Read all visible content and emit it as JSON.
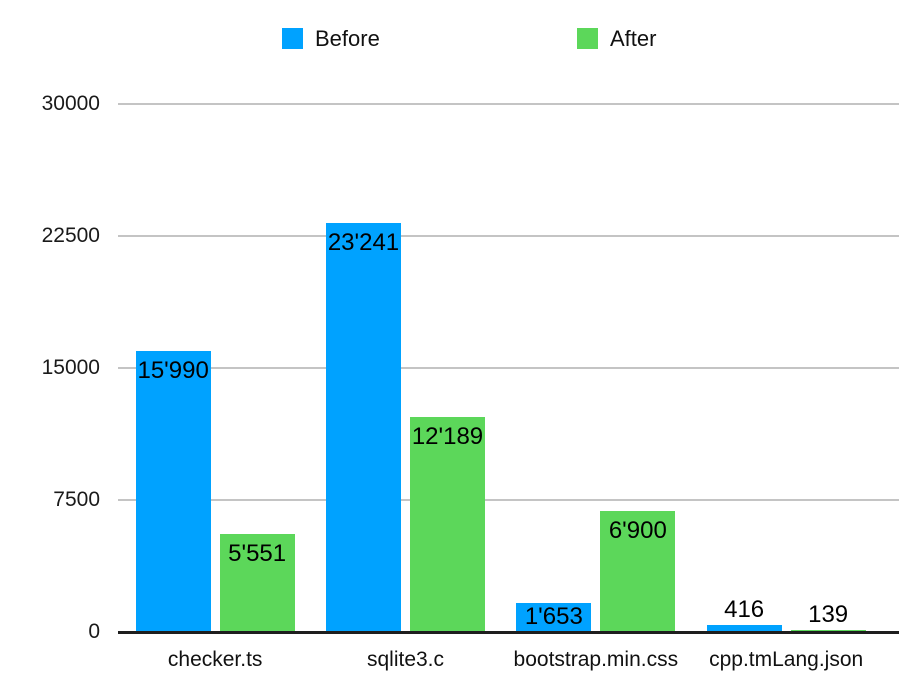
{
  "chart_data": {
    "type": "bar",
    "title": "",
    "xlabel": "",
    "ylabel": "",
    "categories": [
      "checker.ts",
      "sqlite3.c",
      "bootstrap.min.css",
      "cpp.tmLang.json"
    ],
    "series": [
      {
        "name": "Before",
        "color": "#00A2FF",
        "values": [
          15990,
          23241,
          1653,
          416
        ],
        "value_labels": [
          "15'990",
          "23'241",
          "1'653",
          "416"
        ]
      },
      {
        "name": "After",
        "color": "#5CD75A",
        "values": [
          5551,
          12189,
          6900,
          139
        ],
        "value_labels": [
          "5'551",
          "12'189",
          "6'900",
          "139"
        ]
      }
    ],
    "ylim": [
      0,
      30000
    ],
    "yticks": [
      0,
      7500,
      15000,
      22500,
      30000
    ],
    "ytick_labels": [
      "0",
      "7500",
      "15000",
      "22500",
      "30000"
    ],
    "grid": true,
    "gridline_color": "#C4C4C4",
    "axis_line_color": "#1E1E1E",
    "legend_position": "top"
  }
}
